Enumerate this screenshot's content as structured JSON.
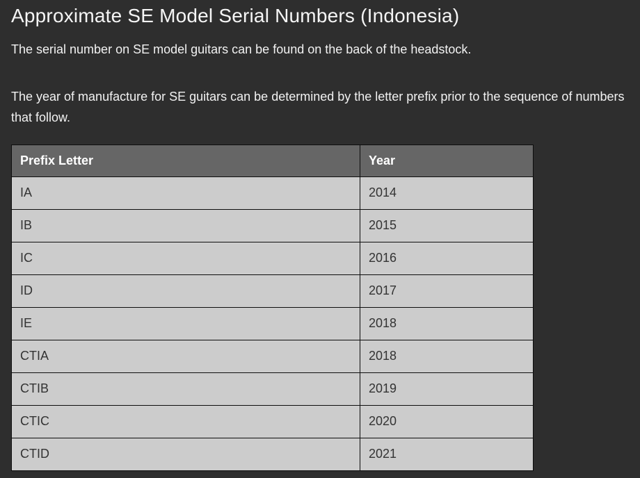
{
  "page": {
    "title": "Approximate SE Model Serial Numbers (Indonesia)",
    "intro": "The serial number on SE model guitars can be found on the back of the headstock.",
    "explanation": "The year of manufacture for SE guitars can be determined by the letter prefix prior to the sequence of numbers that follow."
  },
  "table": {
    "headers": [
      "Prefix Letter",
      "Year"
    ],
    "rows": [
      {
        "prefix": "IA",
        "year": "2014"
      },
      {
        "prefix": "IB",
        "year": "2015"
      },
      {
        "prefix": "IC",
        "year": "2016"
      },
      {
        "prefix": "ID",
        "year": "2017"
      },
      {
        "prefix": "IE",
        "year": "2018"
      },
      {
        "prefix": "CTIA",
        "year": "2018"
      },
      {
        "prefix": "CTIB",
        "year": "2019"
      },
      {
        "prefix": "CTIC",
        "year": "2020"
      },
      {
        "prefix": "CTID",
        "year": "2021"
      }
    ]
  },
  "colors": {
    "page_background": "#2e2e2e",
    "body_text": "#f2f2f2",
    "table_header_background": "#666666",
    "table_header_text": "#ffffff",
    "table_cell_background": "#cccccc",
    "table_cell_text": "#333333",
    "table_border": "#0d0d0d"
  }
}
